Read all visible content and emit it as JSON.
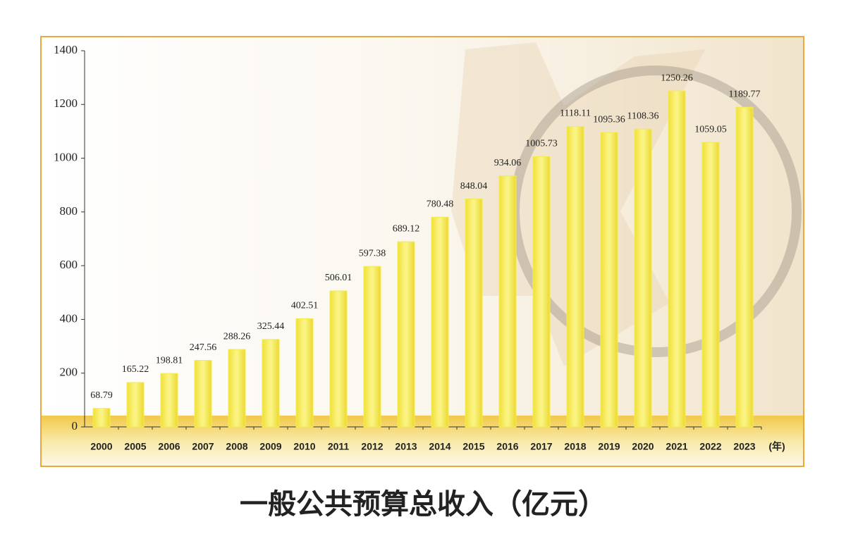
{
  "chart_data": {
    "type": "bar",
    "title": "一般公共预算总收入（亿元）",
    "x_label": "(年)",
    "categories": [
      "2000",
      "2005",
      "2006",
      "2007",
      "2008",
      "2009",
      "2010",
      "2011",
      "2012",
      "2013",
      "2014",
      "2015",
      "2016",
      "2017",
      "2018",
      "2019",
      "2020",
      "2021",
      "2022",
      "2023"
    ],
    "values": [
      68.79,
      165.22,
      198.81,
      247.56,
      288.26,
      325.44,
      402.51,
      506.01,
      597.38,
      689.12,
      780.48,
      848.04,
      934.06,
      1005.73,
      1118.11,
      1095.36,
      1108.36,
      1250.26,
      1059.05,
      1189.77
    ],
    "color": "#f5ec4c",
    "ylim": [
      0,
      1400
    ],
    "yticks": [
      0,
      200,
      400,
      600,
      800,
      1000,
      1200,
      1400
    ],
    "grid": false
  }
}
